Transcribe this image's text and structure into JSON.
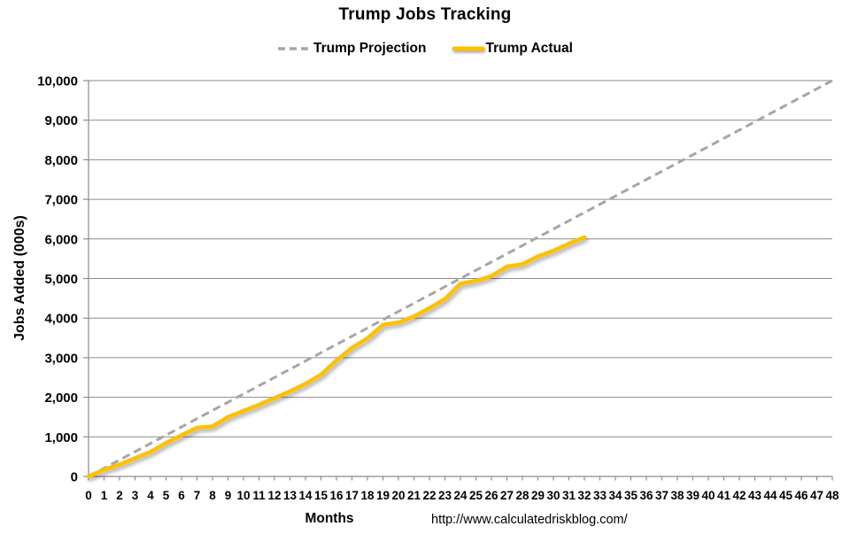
{
  "chart_data": {
    "type": "line",
    "title": "Trump Jobs Tracking",
    "xlabel": "Months",
    "ylabel": "Jobs Added (000s)",
    "watermark": "http://www.calculatedriskblog.com/",
    "xlim": [
      0,
      48
    ],
    "ylim": [
      0,
      10000
    ],
    "grid": "horizontal-major-on",
    "legend_position": "top-center",
    "grid_color": "#8A8A8A",
    "axis_color": "#8A8A8A",
    "text_color": "#000000",
    "x_ticks": [
      "0",
      "1",
      "2",
      "3",
      "4",
      "5",
      "6",
      "7",
      "8",
      "9",
      "10",
      "11",
      "12",
      "13",
      "14",
      "15",
      "16",
      "17",
      "18",
      "19",
      "20",
      "21",
      "22",
      "23",
      "24",
      "25",
      "26",
      "27",
      "28",
      "29",
      "30",
      "31",
      "32",
      "33",
      "34",
      "35",
      "36",
      "37",
      "38",
      "39",
      "40",
      "41",
      "42",
      "43",
      "44",
      "45",
      "46",
      "47",
      "48"
    ],
    "y_ticks": [
      "0",
      "1,000",
      "2,000",
      "3,000",
      "4,000",
      "5,000",
      "6,000",
      "7,000",
      "8,000",
      "9,000",
      "10,000"
    ],
    "series": [
      {
        "name": "Trump Projection",
        "style": "dashed",
        "color": "#A6A6A6",
        "x": [
          0,
          48
        ],
        "values": [
          0,
          10000
        ]
      },
      {
        "name": "Trump Actual",
        "style": "solid",
        "color": "#FFC000",
        "x": [
          0,
          1,
          2,
          3,
          4,
          5,
          6,
          7,
          8,
          9,
          10,
          11,
          12,
          13,
          14,
          15,
          16,
          17,
          18,
          19,
          20,
          21,
          22,
          23,
          24,
          25,
          26,
          27,
          28,
          29,
          30,
          31,
          32
        ],
        "values": [
          0,
          170,
          300,
          460,
          620,
          845,
          1040,
          1230,
          1265,
          1500,
          1655,
          1810,
          1980,
          2150,
          2340,
          2570,
          2930,
          3250,
          3490,
          3830,
          3890,
          4040,
          4250,
          4480,
          4870,
          4940,
          5060,
          5300,
          5360,
          5560,
          5700,
          5880,
          6040
        ]
      }
    ]
  }
}
